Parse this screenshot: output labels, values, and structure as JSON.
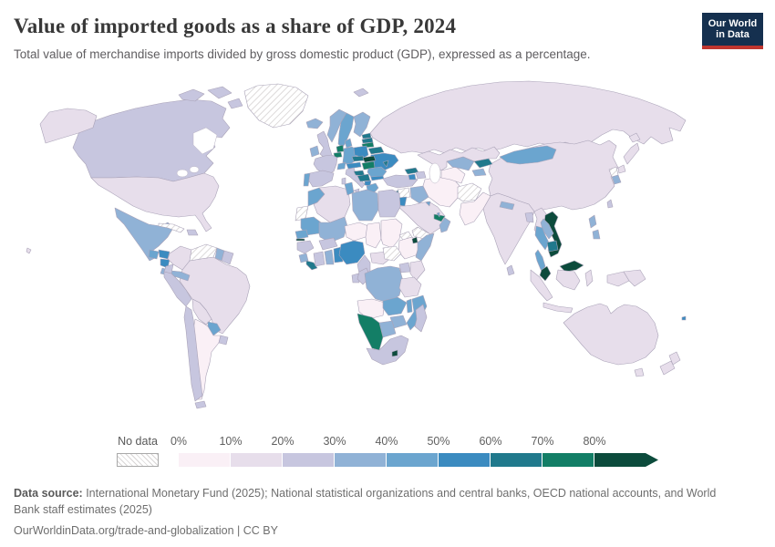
{
  "header": {
    "title": "Value of imported goods as a share of GDP, 2024",
    "subtitle": "Total value of merchandise imports divided by gross domestic product (GDP), expressed as a percentage."
  },
  "logo": {
    "line1": "Our World",
    "line2": "in Data",
    "bg_color": "#15304f",
    "accent_color": "#c0362f"
  },
  "legend": {
    "no_data_label": "No data",
    "ticks": [
      "0%",
      "10%",
      "20%",
      "30%",
      "40%",
      "50%",
      "60%",
      "70%",
      "80%"
    ]
  },
  "footer": {
    "source_label": "Data source:",
    "source_text": " International Monetary Fund (2025); National statistical organizations and central banks, OECD national accounts, and World Bank staff estimates (2025)",
    "link_text": "OurWorldinData.org/trade-and-globalization",
    "license_text": " | CC BY"
  },
  "chart_data": {
    "type": "choropleth",
    "title": "Value of imported goods as a share of GDP, 2024",
    "unit": "% of GDP",
    "year": "2024",
    "legend_position": "bottom",
    "no_data": {
      "label": "No data",
      "pattern": "diagonal-hatch"
    },
    "bins": [
      {
        "label": "0–10%",
        "color": "#faf0f6"
      },
      {
        "label": "10–20%",
        "color": "#e7deeb"
      },
      {
        "label": "20–30%",
        "color": "#c7c6df"
      },
      {
        "label": "30–40%",
        "color": "#90b2d6"
      },
      {
        "label": "40–50%",
        "color": "#6ba5cf"
      },
      {
        "label": "50–60%",
        "color": "#3b8bc0"
      },
      {
        "label": "60–70%",
        "color": "#20798c"
      },
      {
        "label": "70–80%",
        "color": "#137e66"
      },
      {
        "label": "80%+",
        "color": "#0c4b3c"
      }
    ],
    "regions": {
      "greenland": "nd",
      "canada": 2,
      "arctic-islands-1": 2,
      "arctic-islands-2": 2,
      "arctic-islands-3": 2,
      "alaska": 1,
      "usa": 1,
      "hawaii": 1,
      "mexico": 3,
      "guatemala": 4,
      "honduras": 5,
      "nicaragua": 5,
      "costa-rica-panama": 3,
      "cuba": "nd",
      "hispaniola": 2,
      "colombia": 1,
      "venezuela": "nd",
      "guyana": 3,
      "suriname": 2,
      "ecuador": 2,
      "peru": 2,
      "brazil": 1,
      "bolivia": 1,
      "paraguay": 4,
      "uruguay": 2,
      "chile": 2,
      "argentina": 0,
      "tierra-del-fuego": 2,
      "iceland": 3,
      "norway": 3,
      "sweden": 4,
      "finland": 3,
      "estonia": 6,
      "latvia": 6,
      "lithuania": 7,
      "denmark": 4,
      "uk": 2,
      "ireland": 3,
      "netherlands": 7,
      "belgium": 7,
      "germany": 4,
      "poland": 5,
      "belarus": 6,
      "czechia": 6,
      "slovakia": 8,
      "austria": 5,
      "switzerland": 4,
      "hungary": 7,
      "france": 2,
      "spain": 2,
      "portugal": 4,
      "italy": 2,
      "sicily": 2,
      "sardinia": 2,
      "slovenia-croatia": 6,
      "bosnia-serbia": 6,
      "albania-macedonia": 5,
      "greece": 4,
      "bulgaria": 5,
      "romania": 4,
      "moldova": 6,
      "ukraine": 5,
      "russia": 1,
      "svalbard": 2,
      "turkey": 2,
      "georgia": 6,
      "armenia": 5,
      "azerbaijan": 2,
      "syria": "nd",
      "lebanon": 6,
      "israel": 6,
      "jordan": 5,
      "iraq": 3,
      "saudi-arabia": 1,
      "yemen": "nd",
      "oman": 3,
      "uae": 7,
      "kuwait": 4,
      "qatar": 4,
      "iran": 0,
      "afghanistan": "nd",
      "pakistan": 0,
      "turkmenistan": 0,
      "uzbekistan": 3,
      "kyrgyzstan": 6,
      "tajikistan": 3,
      "kazakhstan": 1,
      "india": 1,
      "nepal": 3,
      "bangladesh": 2,
      "sri-lanka": 2,
      "myanmar": 1,
      "china": 1,
      "mongolia": 4,
      "north-korea": "nd",
      "south-korea": 3,
      "japan-hokkaido": 1,
      "japan-honshu": 1,
      "japan-kyushu": 1,
      "taiwan": 2,
      "vietnam": 8,
      "laos": 3,
      "thailand": 4,
      "thai-peninsula": 4,
      "cambodia": 6,
      "malaysia-peninsula": 8,
      "malaysia-borneo": 8,
      "sumatra": 1,
      "java": 1,
      "kalimantan": 1,
      "sulawesi": 1,
      "west-papua": 1,
      "papua-new-guinea": 1,
      "philippines-luzon": 3,
      "philippines-south": 3,
      "australia": 1,
      "tasmania": 1,
      "nz-north": 1,
      "nz-south": 1,
      "fiji": 5,
      "morocco": 4,
      "western-sahara": "nd",
      "algeria": 1,
      "tunisia": 4,
      "libya": 3,
      "egypt": 2,
      "mauritania": 4,
      "mali": 3,
      "niger": 0,
      "chad": 0,
      "sudan": 0,
      "eritrea": "nd",
      "ethiopia": 0,
      "djibouti": 8,
      "somalia": 3,
      "senegal": 4,
      "gambia": 8,
      "guinea": 2,
      "sierra-leone": 3,
      "liberia": 6,
      "ivory-coast": 2,
      "ghana": 3,
      "togo-benin": 5,
      "burkina-faso": 2,
      "nigeria": 5,
      "cameroon": 2,
      "central-african-republic": 1,
      "south-sudan": "nd",
      "gabon": 2,
      "congo": 2,
      "drc": 3,
      "uganda": 2,
      "kenya": 1,
      "tanzania": 1,
      "angola": 0,
      "zambia": 4,
      "malawi": 4,
      "mozambique": 4,
      "zimbabwe": 3,
      "botswana": 3,
      "namibia": 7,
      "south-africa": 2,
      "lesotho": 8,
      "madagascar": 2
    }
  }
}
